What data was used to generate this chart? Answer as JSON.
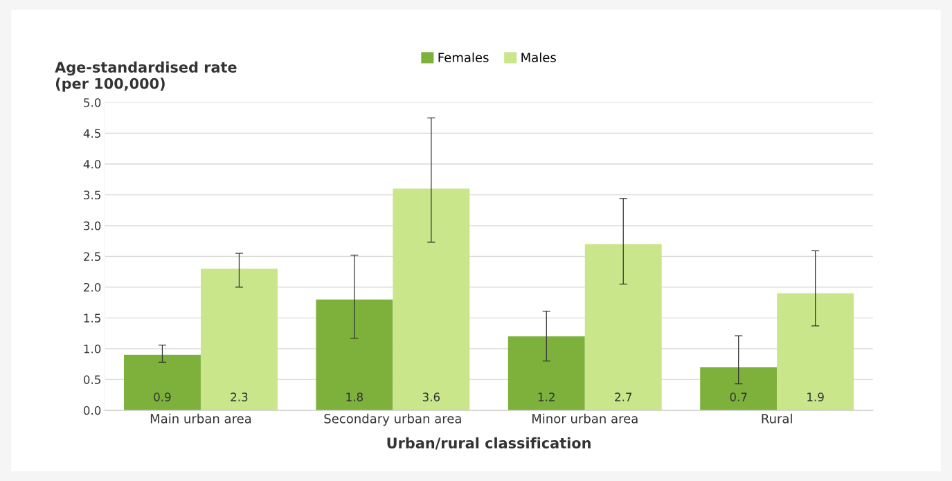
{
  "chart_data": {
    "type": "bar",
    "ylabel": "Age-standardised rate\n(per 100,000)",
    "xlabel": "Urban/rural classification",
    "categories": [
      "Main urban area",
      "Secondary urban area",
      "Minor urban area",
      "Rural"
    ],
    "series": [
      {
        "name": "Females",
        "color": "#7db13c",
        "values": [
          0.9,
          1.8,
          1.2,
          0.7
        ],
        "errors": [
          [
            0.78,
            1.06
          ],
          [
            1.17,
            2.52
          ],
          [
            0.8,
            1.61
          ],
          [
            0.43,
            1.21
          ]
        ]
      },
      {
        "name": "Males",
        "color": "#cae68a",
        "values": [
          2.3,
          3.6,
          2.7,
          1.9
        ],
        "errors": [
          [
            2.0,
            2.55
          ],
          [
            2.73,
            4.75
          ],
          [
            2.05,
            3.44
          ],
          [
            1.37,
            2.59
          ]
        ]
      }
    ],
    "ylim": [
      0,
      5
    ],
    "yticks": [
      {
        "value": 0,
        "label": "0.0"
      },
      {
        "value": 0.5,
        "label": "0.5"
      },
      {
        "value": 1,
        "label": "1.0"
      },
      {
        "value": 1.5,
        "label": "1.5"
      },
      {
        "value": 2,
        "label": "2.0"
      },
      {
        "value": 2.5,
        "label": "2.5"
      },
      {
        "value": 3,
        "label": "3.0"
      },
      {
        "value": 3.5,
        "label": "3.5"
      },
      {
        "value": 4,
        "label": "4.0"
      },
      {
        "value": 4.5,
        "label": "4.5"
      },
      {
        "value": 5,
        "label": "5.0"
      }
    ],
    "grid": "y",
    "legend": "top",
    "data_labels": true
  }
}
